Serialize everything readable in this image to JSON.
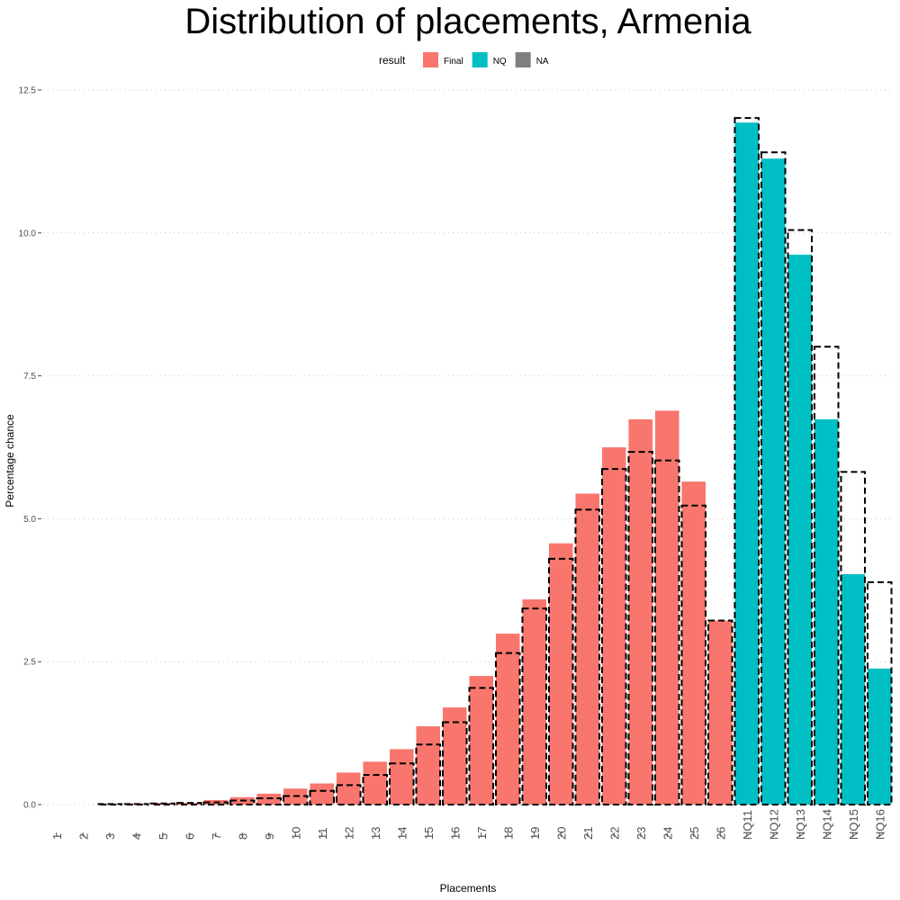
{
  "chart_data": {
    "type": "bar",
    "title": "Distribution of placements, Armenia",
    "xlabel": "Placements",
    "ylabel": "Percentage chance",
    "ylim": [
      0,
      12.5
    ],
    "yticks": [
      "0.0",
      "2.5",
      "5.0",
      "7.5",
      "10.0",
      "12.5"
    ],
    "grid": "horizontal dotted",
    "legend": {
      "title": "result",
      "placement": "top",
      "entries": [
        {
          "label": "Final",
          "color": "#F8766D"
        },
        {
          "label": "NQ",
          "color": "#00BFC4"
        },
        {
          "label": "NA",
          "color": "#7F7F7F"
        }
      ]
    },
    "categories": [
      "1",
      "2",
      "3",
      "4",
      "5",
      "6",
      "7",
      "8",
      "9",
      "10",
      "11",
      "12",
      "13",
      "14",
      "15",
      "16",
      "17",
      "18",
      "19",
      "20",
      "21",
      "22",
      "23",
      "24",
      "25",
      "26",
      "NQ11",
      "NQ12",
      "NQ13",
      "NQ14",
      "NQ15",
      "NQ16"
    ],
    "series": [
      {
        "name": "result",
        "groups": [
          "NA",
          "NA",
          "Final",
          "Final",
          "Final",
          "Final",
          "Final",
          "Final",
          "Final",
          "Final",
          "Final",
          "Final",
          "Final",
          "Final",
          "Final",
          "Final",
          "Final",
          "Final",
          "Final",
          "Final",
          "Final",
          "Final",
          "Final",
          "Final",
          "Final",
          "Final",
          "NQ",
          "NQ",
          "NQ",
          "NQ",
          "NQ",
          "NQ"
        ],
        "values": [
          0,
          0,
          0.01,
          0.02,
          0.03,
          0.03,
          0.08,
          0.13,
          0.19,
          0.28,
          0.37,
          0.56,
          0.75,
          0.97,
          1.37,
          1.7,
          2.25,
          2.99,
          3.59,
          4.57,
          5.44,
          6.25,
          6.74,
          6.89,
          5.65,
          3.22,
          11.93,
          11.3,
          9.62,
          6.74,
          4.03,
          2.38
        ]
      },
      {
        "name": "",
        "style": "dashed outline",
        "values": [
          0,
          0,
          0.01,
          0.01,
          0.02,
          0.03,
          0.04,
          0.07,
          0.11,
          0.15,
          0.24,
          0.34,
          0.52,
          0.72,
          1.05,
          1.44,
          2.04,
          2.65,
          3.43,
          4.3,
          5.16,
          5.87,
          6.17,
          6.02,
          5.23,
          3.22,
          12.01,
          11.41,
          10.05,
          8.01,
          5.82,
          3.89
        ]
      }
    ]
  }
}
